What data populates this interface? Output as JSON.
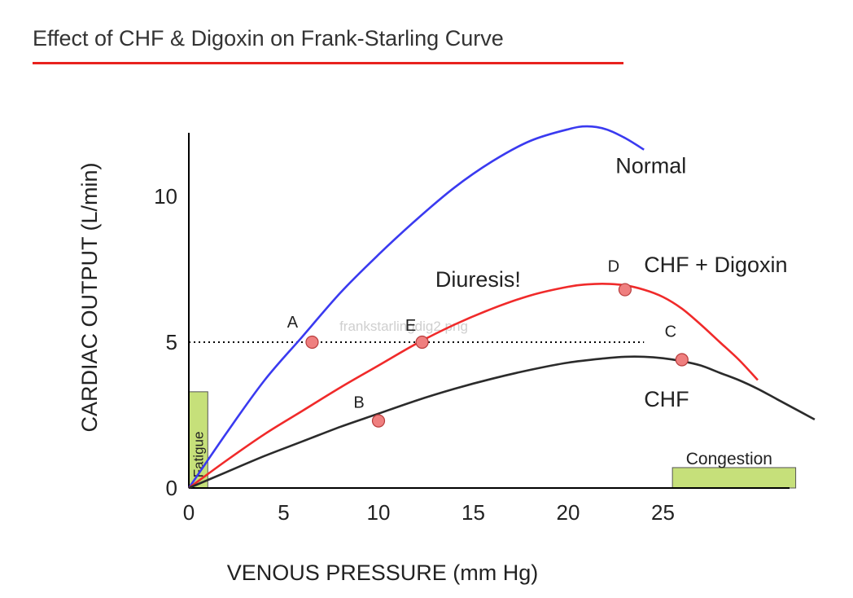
{
  "title": "Effect of CHF & Digoxin on Frank-Starling Curve",
  "watermark": "frankstarlingdig2.png",
  "chart_data": {
    "type": "line",
    "xlabel": "VENOUS PRESSURE (mm Hg)",
    "ylabel": "CARDIAC OUTPUT (L/min)",
    "xlim": [
      0,
      30
    ],
    "ylim": [
      0,
      12
    ],
    "x_ticks": [
      0,
      5,
      10,
      15,
      20,
      25
    ],
    "y_ticks": [
      0,
      5,
      10
    ],
    "series": [
      {
        "name": "Normal",
        "color": "#3a3af0",
        "x": [
          0,
          2,
          4,
          6,
          8,
          10,
          12,
          14,
          16,
          18,
          20,
          21,
          22,
          23,
          24
        ],
        "y": [
          0,
          1.9,
          3.7,
          5.2,
          6.7,
          8.0,
          9.2,
          10.3,
          11.2,
          11.9,
          12.3,
          12.4,
          12.3,
          12.0,
          11.6
        ]
      },
      {
        "name": "CHF + Digoxin",
        "color": "#f02a2a",
        "x": [
          0,
          2,
          4,
          6,
          8,
          10,
          12,
          14,
          16,
          18,
          20,
          21,
          22,
          23,
          24,
          25,
          26,
          27,
          28,
          29,
          30
        ],
        "y": [
          0,
          0.95,
          1.85,
          2.65,
          3.45,
          4.2,
          4.95,
          5.6,
          6.15,
          6.6,
          6.9,
          6.98,
          7.0,
          6.95,
          6.8,
          6.55,
          6.15,
          5.6,
          5.0,
          4.4,
          3.7
        ]
      },
      {
        "name": "CHF",
        "color": "#2b2b2b",
        "x": [
          0,
          2,
          4,
          6,
          8,
          10,
          12,
          14,
          16,
          18,
          20,
          22,
          23,
          24,
          25,
          26,
          27,
          28,
          29,
          30,
          31,
          32,
          33
        ],
        "y": [
          0,
          0.55,
          1.1,
          1.6,
          2.1,
          2.55,
          3.0,
          3.4,
          3.75,
          4.05,
          4.3,
          4.45,
          4.5,
          4.5,
          4.45,
          4.35,
          4.2,
          3.95,
          3.7,
          3.4,
          3.05,
          2.7,
          2.35
        ]
      }
    ],
    "reference_line": {
      "y": 5,
      "x_from": 0,
      "x_to": 24,
      "style": "dotted"
    },
    "points": [
      {
        "label": "A",
        "x": 6.5,
        "y": 5.0
      },
      {
        "label": "B",
        "x": 10.0,
        "y": 2.3
      },
      {
        "label": "C",
        "x": 26.0,
        "y": 4.4
      },
      {
        "label": "D",
        "x": 23.0,
        "y": 6.8
      },
      {
        "label": "E",
        "x": 12.3,
        "y": 5.0
      }
    ],
    "series_labels": [
      {
        "text": "Normal",
        "x": 22.5,
        "y": 10.8
      },
      {
        "text": "CHF + Digoxin",
        "x": 24.0,
        "y": 7.4
      },
      {
        "text": "CHF",
        "x": 24.0,
        "y": 2.8
      },
      {
        "text": "Diuresis!",
        "x": 13.0,
        "y": 6.9
      }
    ],
    "regions": [
      {
        "label": "Fatigue",
        "x_from": 0,
        "x_to": 1,
        "y_from": 0,
        "y_to": 3.3,
        "color": "#c6e07a"
      },
      {
        "label": "Congestion",
        "x_from": 25.5,
        "x_to": 32,
        "y_from": 0,
        "y_to": 0.7,
        "color": "#c6e07a"
      }
    ],
    "grid": false,
    "legend": "none"
  }
}
